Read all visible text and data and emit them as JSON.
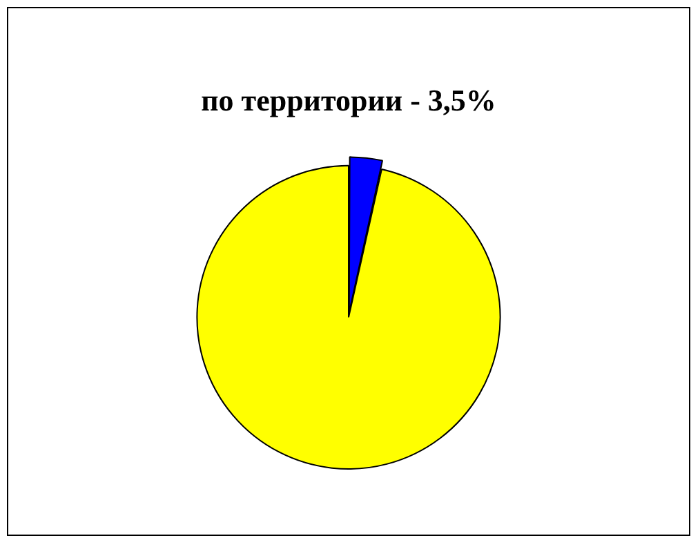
{
  "chart_data": {
    "type": "pie",
    "title": "по территории - 3,5%",
    "categories": [
      null,
      null
    ],
    "values": [
      3.5,
      96.5
    ],
    "colors": [
      "#0000ff",
      "#ffff00"
    ]
  }
}
